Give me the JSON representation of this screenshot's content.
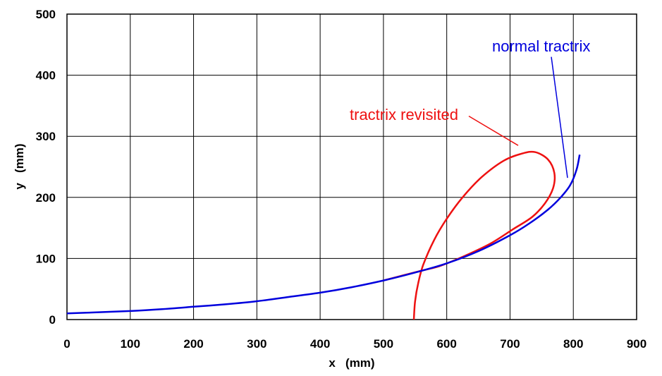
{
  "chart_data": {
    "type": "line",
    "xlabel": "x   (mm)",
    "ylabel": "y   (mm)",
    "xlim": [
      0,
      900
    ],
    "ylim": [
      0,
      500
    ],
    "x_ticks": [
      "0",
      "100",
      "200",
      "300",
      "400",
      "500",
      "600",
      "700",
      "800",
      "900"
    ],
    "y_ticks": [
      "0",
      "100",
      "200",
      "300",
      "400",
      "500"
    ],
    "grid": true,
    "series": [
      {
        "name": "normal tractrix",
        "color": "#0000dd",
        "points": [
          [
            0,
            10
          ],
          [
            50,
            12
          ],
          [
            100,
            14
          ],
          [
            150,
            17
          ],
          [
            200,
            21
          ],
          [
            250,
            25
          ],
          [
            300,
            30
          ],
          [
            350,
            37
          ],
          [
            400,
            44
          ],
          [
            450,
            53
          ],
          [
            500,
            64
          ],
          [
            550,
            77
          ],
          [
            600,
            92
          ],
          [
            650,
            112
          ],
          [
            700,
            138
          ],
          [
            730,
            157
          ],
          [
            760,
            180
          ],
          [
            780,
            200
          ],
          [
            795,
            220
          ],
          [
            805,
            245
          ],
          [
            810,
            270
          ]
        ]
      },
      {
        "name": "tractrix revisited",
        "color": "#ee1111",
        "points": [
          [
            548,
            0
          ],
          [
            550,
            30
          ],
          [
            555,
            60
          ],
          [
            563,
            90
          ],
          [
            580,
            130
          ],
          [
            600,
            165
          ],
          [
            625,
            200
          ],
          [
            655,
            233
          ],
          [
            690,
            260
          ],
          [
            720,
            272
          ],
          [
            740,
            274
          ],
          [
            760,
            262
          ],
          [
            770,
            240
          ],
          [
            768,
            215
          ],
          [
            755,
            190
          ],
          [
            735,
            168
          ],
          [
            705,
            148
          ],
          [
            670,
            125
          ],
          [
            630,
            105
          ],
          [
            590,
            88
          ],
          [
            560,
            80
          ],
          [
            530,
            72
          ],
          [
            500,
            64
          ]
        ]
      }
    ],
    "annotations": [
      {
        "text": "normal tractrix",
        "color": "#0000dd",
        "pointer_from": [
          782,
          430
        ],
        "pointer_to": [
          805,
          232
        ]
      },
      {
        "text": "tractrix revisited",
        "color": "#ee1111",
        "pointer_from": [
          665,
          333
        ],
        "pointer_to": [
          735,
          285
        ]
      }
    ]
  }
}
